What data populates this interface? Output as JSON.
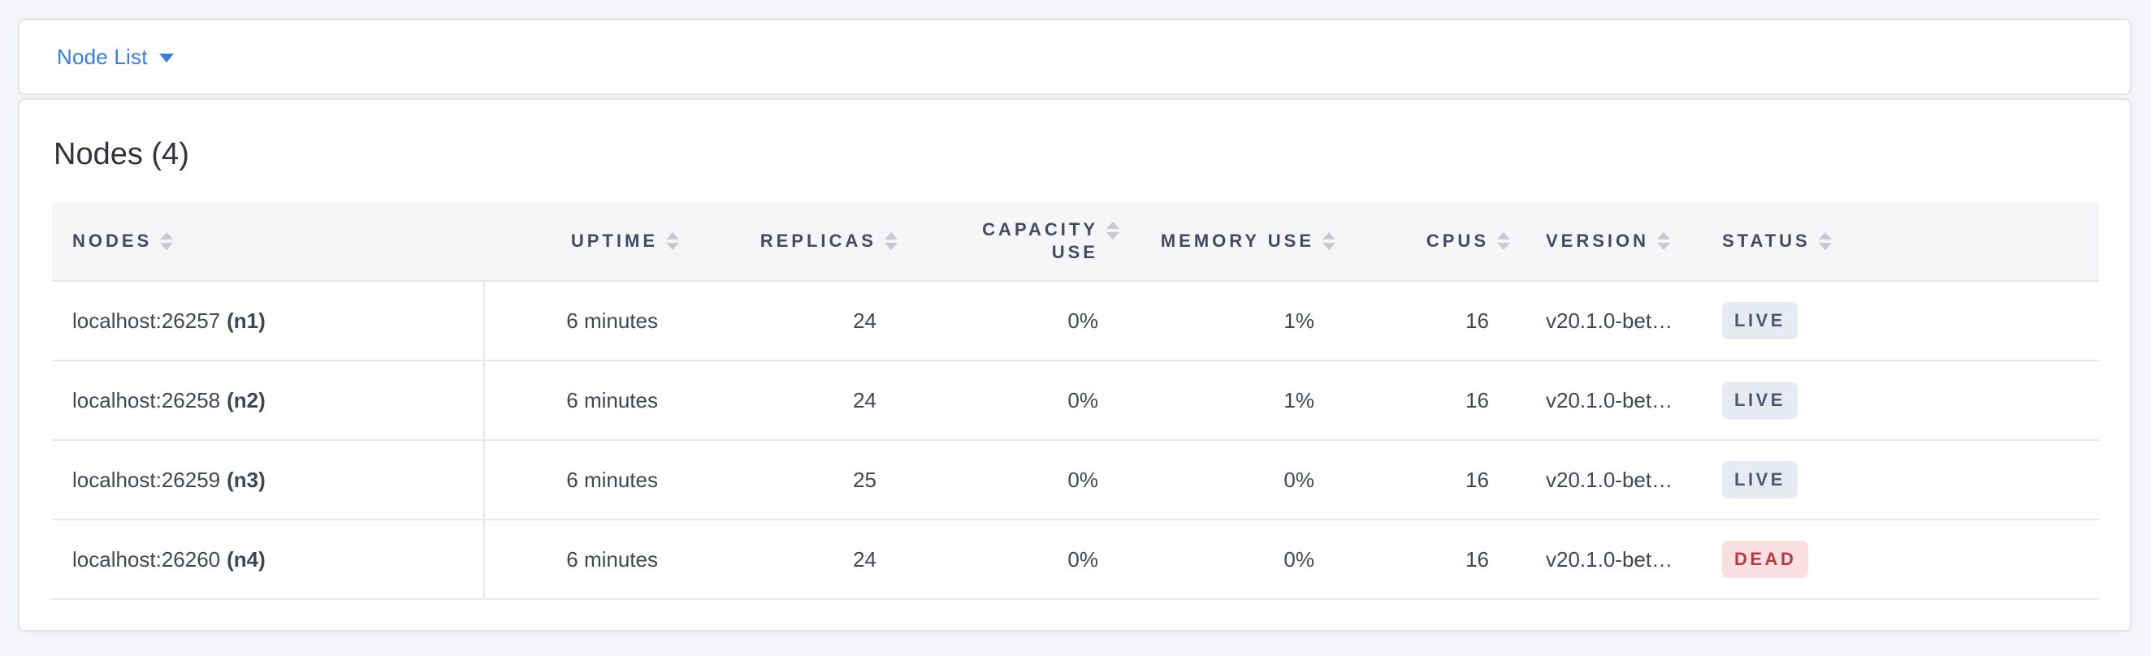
{
  "toolbar": {
    "dropdown_label": "Node List"
  },
  "panel": {
    "title": "Nodes (4)",
    "table": {
      "columns": [
        {
          "label": "NODES",
          "align": "left"
        },
        {
          "label": "UPTIME",
          "align": "right"
        },
        {
          "label": "REPLICAS",
          "align": "right"
        },
        {
          "label": "CAPACITY USE",
          "align": "right"
        },
        {
          "label": "MEMORY USE",
          "align": "right"
        },
        {
          "label": "CPUS",
          "align": "right"
        },
        {
          "label": "VERSION",
          "align": "left"
        },
        {
          "label": "STATUS",
          "align": "left"
        }
      ],
      "rows": [
        {
          "address": "localhost:26257",
          "node_id": "(n1)",
          "uptime": "6 minutes",
          "replicas": "24",
          "capacity_use": "0%",
          "memory_use": "1%",
          "cpus": "16",
          "version": "v20.1.0-bet…",
          "status": "LIVE"
        },
        {
          "address": "localhost:26258",
          "node_id": "(n2)",
          "uptime": "6 minutes",
          "replicas": "24",
          "capacity_use": "0%",
          "memory_use": "1%",
          "cpus": "16",
          "version": "v20.1.0-bet…",
          "status": "LIVE"
        },
        {
          "address": "localhost:26259",
          "node_id": "(n3)",
          "uptime": "6 minutes",
          "replicas": "25",
          "capacity_use": "0%",
          "memory_use": "0%",
          "cpus": "16",
          "version": "v20.1.0-bet…",
          "status": "LIVE"
        },
        {
          "address": "localhost:26260",
          "node_id": "(n4)",
          "uptime": "6 minutes",
          "replicas": "24",
          "capacity_use": "0%",
          "memory_use": "0%",
          "cpus": "16",
          "version": "v20.1.0-bet…",
          "status": "DEAD"
        }
      ]
    }
  },
  "colors": {
    "accent_blue": "#3a7ce2",
    "live_badge_bg": "#e8eaf1",
    "live_badge_text": "#475872",
    "dead_badge_bg": "#f9dfe2",
    "dead_badge_text": "#b53b42"
  }
}
